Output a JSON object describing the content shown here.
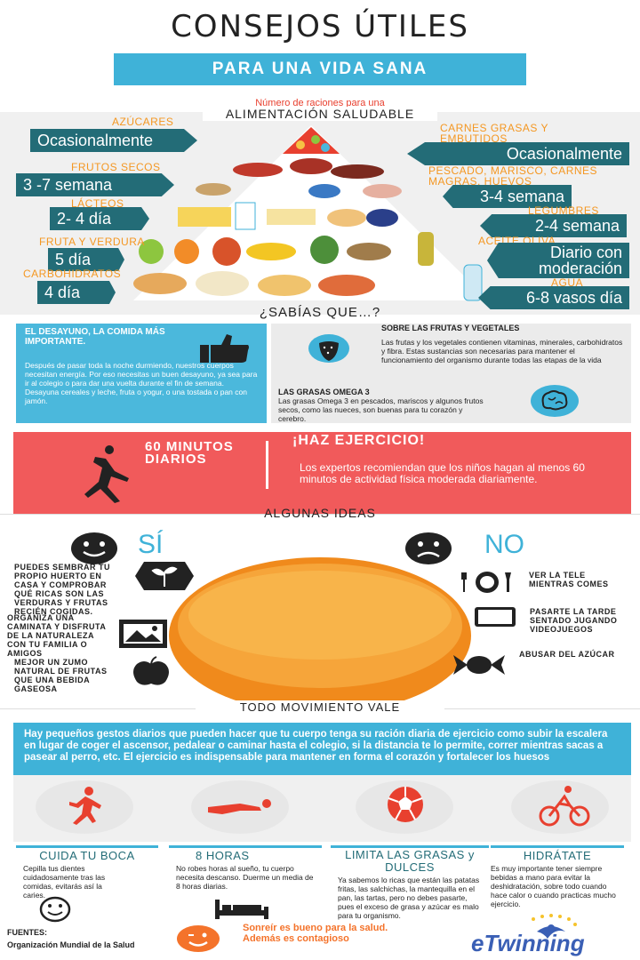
{
  "header": {
    "title": "CONSEJOS ÚTILES",
    "subtitle": "PARA UNA VIDA SANA"
  },
  "pyramid": {
    "caption": "Número de raciones para una",
    "title": "ALIMENTACIÓN SALUDABLE",
    "left": [
      {
        "category": "AZÚCARES",
        "value": "Ocasionalmente"
      },
      {
        "category": "FRUTOS SECOS",
        "value": "3 -7 semana"
      },
      {
        "category": "LÁCTEOS",
        "value": "2- 4 día"
      },
      {
        "category": "FRUTA  Y VERDURA",
        "value": "5 día"
      },
      {
        "category": "CARBOHIDRATOS",
        "value": "4 día"
      }
    ],
    "right": [
      {
        "category": "CARNES GRASAS Y EMBUTIDOS",
        "value": "Ocasionalmente"
      },
      {
        "category": "PESCADO, MARISCO, CARNES MAGRAS, HUEVOS",
        "value": "3-4 semana"
      },
      {
        "category": "LEGUMBRES",
        "value": "2-4 semana"
      },
      {
        "category": "ACEITE OLIVA",
        "value": "Diario con moderación"
      },
      {
        "category": "AGUA",
        "value": "6-8 vasos día"
      }
    ]
  },
  "sabias": {
    "title": "¿SABÍAS QUE…?",
    "desayuno_title": "EL DESAYUNO, LA COMIDA MÁS IMPORTANTE.",
    "desayuno_text": "Después de pasar  toda la noche durmiendo, nuestros cuerpos necesitan energía. Por eso necesitas un buen desayuno, ya sea para ir al colegio o para dar una vuelta durante el fin de semana.  Desayuna cereales y leche, fruta o yogur, o una tostada o pan con jamón.",
    "frutas_title": "SOBRE LAS FRUTAS Y VEGETALES",
    "frutas_text": "Las frutas y los vegetales contienen vitaminas, minerales, carbohidratos y fibra. Estas sustancias son necesarias para mantener el funcionamiento del organismo durante todas las etapas de la vida",
    "omega_title": "LAS GRASAS OMEGA 3",
    "omega_text": " Las grasas Omega 3 en pescados, mariscos y algunos frutos secos, como las nueces, son buenas para tu corazón y cerebro."
  },
  "exercise": {
    "minutes": "60 MINUTOS DIARIOS",
    "title": "¡HAZ EJERCICIO!",
    "text": "Los expertos recomiendan que los niños hagan al menos 60 minutos de actividad física moderada diariamente."
  },
  "ideas": {
    "title": "ALGUNAS IDEAS",
    "yes_label": "SÍ",
    "no_label": "NO",
    "yes": [
      "PUEDES SEMBRAR TU PROPIO HUERTO EN CASA Y COMPROBAR QUÉ RICAS SON LAS VERDURAS Y FRUTAS RECIÉN COGIDAS.",
      "ORGANIZA UNA CAMINATA Y DISFRUTA DE LA NATURALEZA CON TU FAMILIA O AMIGOS",
      "MEJOR UN ZUMO NATURAL DE FRUTAS QUE UNA BEBIDA GASEOSA"
    ],
    "no": [
      "VER LA TELE MIENTRAS COMES",
      "PASARTE LA TARDE SENTADO JUGANDO VIDEOJUEGOS",
      "ABUSAR DEL AZÚCAR"
    ]
  },
  "movement": {
    "title": "TODO MOVIMIENTO VALE",
    "text": "Hay pequeños gestos diarios que pueden hacer que tu cuerpo tenga su ración diaria de ejercicio como subir la escalera en lugar de coger el ascensor, pedalear o caminar hasta el colegio, si la distancia te lo permite, correr mientras sacas a pasear al perro, etc. El ejercicio es indispensable para mantener en forma el corazón y fortalecer los huesos"
  },
  "tips": [
    {
      "title": "CUIDA TU BOCA",
      "text": "Cepilla tus dientes cuidadosamente tras las comidas, evitarás así la caries."
    },
    {
      "title": "8 HORAS",
      "text": "No robes horas al sueño, tu cuerpo necesita descanso. Duerme un media de 8 horas diarias."
    },
    {
      "title": "LIMITA LAS GRASAS y DULCES",
      "text": "Ya sabemos lo ricas que están las patatas fritas, las salchichas, la mantequilla en el pan, las tartas, pero no debes pasarte, pues el exceso de grasa y azúcar es malo para tu organismo."
    },
    {
      "title": "HIDRÁTATE",
      "text": "Es muy importante tener siempre bebidas a mano para evitar la deshidratación, sobre todo cuando hace calor o cuando practicas mucho ejercicio."
    }
  ],
  "footer": {
    "fuentes": "FUENTES:",
    "source": "Organización Mundial de la Salud",
    "smile_text": "Sonreír es bueno para la salud. Además es contagioso",
    "logo_text": "eTwinning"
  },
  "colors": {
    "blue": "#3fb2d8",
    "teal": "#236c77",
    "orange": "#f49722",
    "coral": "#f15a5b",
    "red": "#e8402f"
  }
}
